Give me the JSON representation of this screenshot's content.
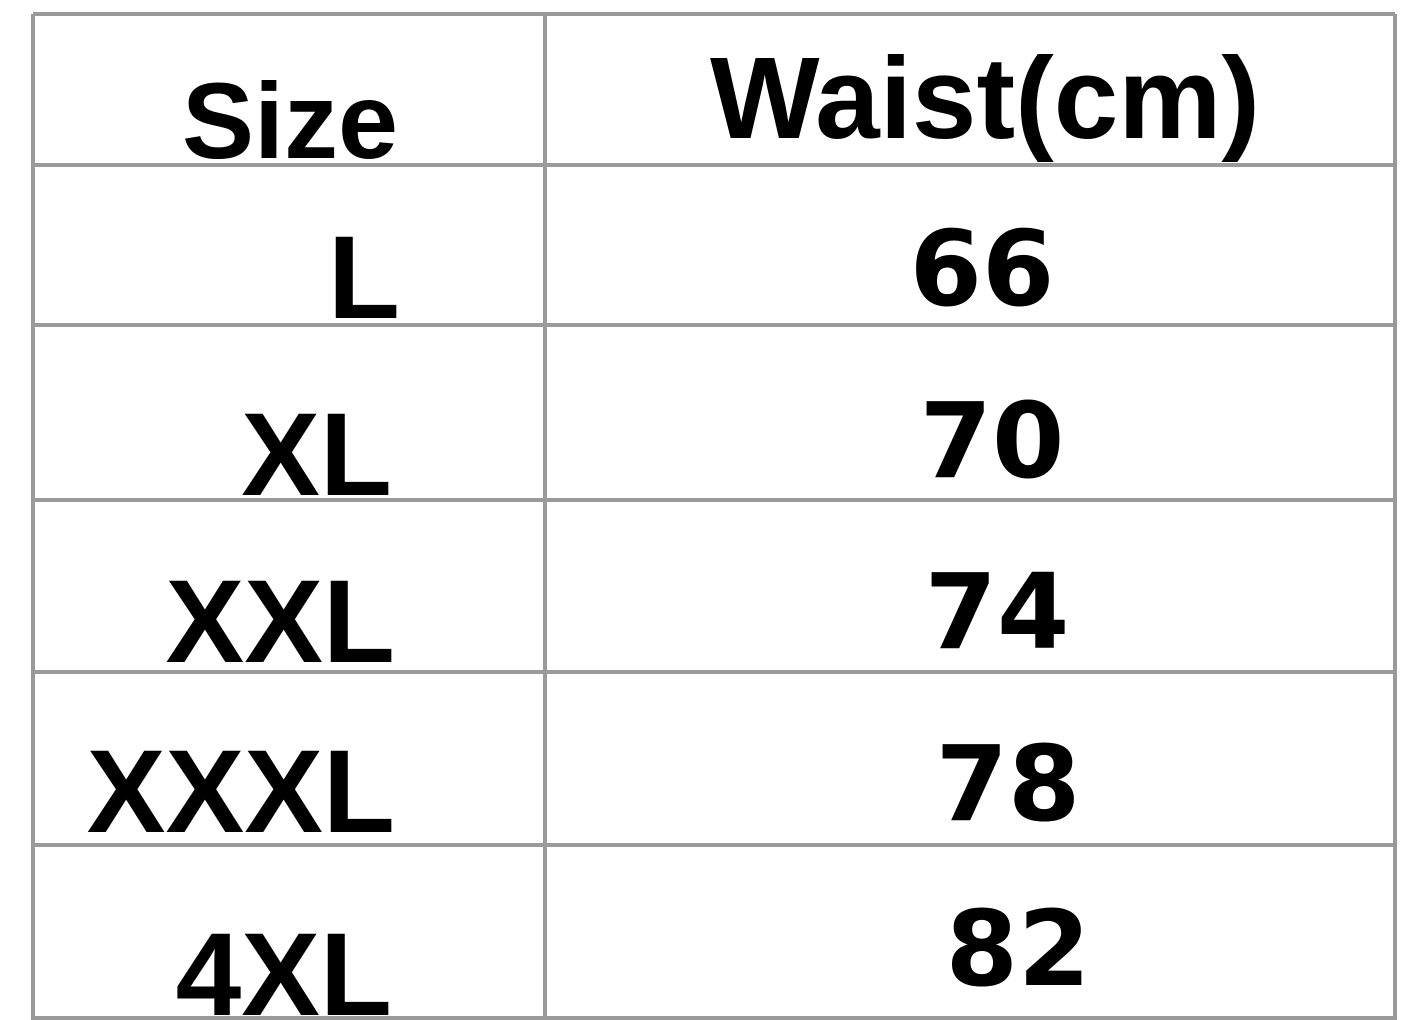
{
  "table": {
    "header": [
      "Size",
      "Waist(cm)"
    ],
    "rows": [
      [
        "L",
        66
      ],
      [
        "XL",
        70
      ],
      [
        "XXL",
        74
      ],
      [
        "XXXL",
        78
      ],
      [
        "4XL",
        82
      ]
    ]
  }
}
